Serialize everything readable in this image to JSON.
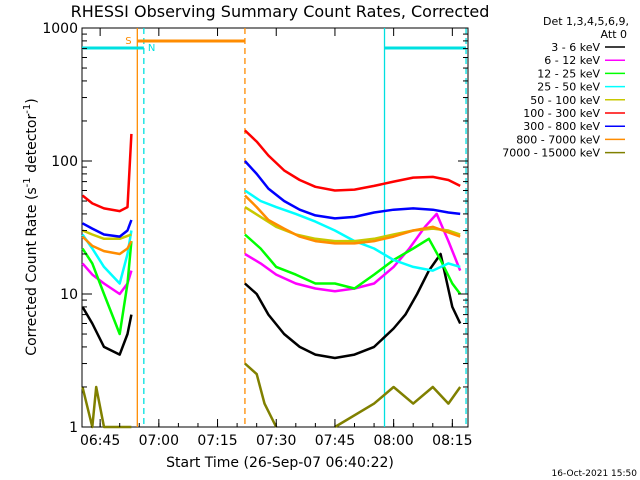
{
  "chart_data": {
    "type": "line",
    "title": "RHESSI Observing Summary Count Rates, Corrected",
    "xlabel": "Start Time (26-Sep-07 06:40:22)",
    "ylabel": "Corrected Count Rate (s⁻¹ detector⁻¹)",
    "ylabel_parts": {
      "base": "Corrected Count Rate (s",
      "exp1": "-1",
      "mid": " detector",
      "exp2": "-1",
      "end": ")"
    },
    "yscale": "log",
    "ylim": [
      1,
      1000
    ],
    "xlim": [
      "06:40:22",
      "08:19:00"
    ],
    "x_tick_labels": [
      "06:45",
      "07:00",
      "07:15",
      "07:30",
      "07:45",
      "08:00",
      "08:15"
    ],
    "y_tick_labels": [
      "1",
      "10",
      "100",
      "1000"
    ],
    "legend_header": [
      "Det 1,3,4,5,6,9,",
      "Att 0"
    ],
    "legend_position": "right",
    "footer_timestamp": "16-Oct-2021 15:50",
    "gaps": [
      "06:53:30-07:55:40 no data except 07:22-07:55"
    ],
    "series": [
      {
        "name": "3 - 6 keV",
        "color": "#000000",
        "points": [
          [
            "06:40:30",
            8
          ],
          [
            "06:43",
            6
          ],
          [
            "06:46",
            4
          ],
          [
            "06:50",
            3.5
          ],
          [
            "06:52",
            5
          ],
          [
            "06:53",
            7
          ],
          [
            "07:22",
            12
          ],
          [
            "07:25",
            10
          ],
          [
            "07:28",
            7
          ],
          [
            "07:32",
            5
          ],
          [
            "07:36",
            4
          ],
          [
            "07:40",
            3.5
          ],
          [
            "07:45",
            3.3
          ],
          [
            "07:50",
            3.5
          ],
          [
            "07:55",
            4
          ],
          [
            "08:00",
            5.5
          ],
          [
            "08:03",
            7
          ],
          [
            "08:06",
            10
          ],
          [
            "08:09",
            15
          ],
          [
            "08:12",
            20
          ],
          [
            "08:15",
            8
          ],
          [
            "08:17",
            6
          ]
        ]
      },
      {
        "name": "6 - 12 keV",
        "color": "#ff00ff",
        "points": [
          [
            "06:40:30",
            17
          ],
          [
            "06:43",
            14
          ],
          [
            "06:46",
            12
          ],
          [
            "06:50",
            10
          ],
          [
            "06:52",
            12
          ],
          [
            "06:53",
            15
          ],
          [
            "07:22",
            20
          ],
          [
            "07:26",
            17
          ],
          [
            "07:30",
            14
          ],
          [
            "07:35",
            12
          ],
          [
            "07:40",
            11
          ],
          [
            "07:45",
            10.5
          ],
          [
            "07:50",
            11
          ],
          [
            "07:55",
            12
          ],
          [
            "08:00",
            16
          ],
          [
            "08:04",
            22
          ],
          [
            "08:08",
            32
          ],
          [
            "08:11",
            40
          ],
          [
            "08:14",
            25
          ],
          [
            "08:17",
            15
          ]
        ]
      },
      {
        "name": "12 - 25 keV",
        "color": "#00ff00",
        "points": [
          [
            "06:40:30",
            22
          ],
          [
            "06:43",
            17
          ],
          [
            "06:46",
            10
          ],
          [
            "06:50",
            5
          ],
          [
            "06:52",
            12
          ],
          [
            "06:53",
            25
          ],
          [
            "07:22",
            28
          ],
          [
            "07:26",
            22
          ],
          [
            "07:30",
            16
          ],
          [
            "07:35",
            14
          ],
          [
            "07:40",
            12
          ],
          [
            "07:45",
            12
          ],
          [
            "07:50",
            11
          ],
          [
            "07:55",
            14
          ],
          [
            "08:00",
            18
          ],
          [
            "08:05",
            22
          ],
          [
            "08:09",
            26
          ],
          [
            "08:12",
            18
          ],
          [
            "08:15",
            12
          ],
          [
            "08:17",
            10
          ]
        ]
      },
      {
        "name": "25 - 50 keV",
        "color": "#00ffff",
        "points": [
          [
            "06:40:30",
            28
          ],
          [
            "06:43",
            22
          ],
          [
            "06:46",
            16
          ],
          [
            "06:50",
            12
          ],
          [
            "06:52",
            20
          ],
          [
            "06:53",
            30
          ],
          [
            "07:22",
            60
          ],
          [
            "07:26",
            50
          ],
          [
            "07:30",
            45
          ],
          [
            "07:35",
            40
          ],
          [
            "07:40",
            35
          ],
          [
            "07:45",
            30
          ],
          [
            "07:50",
            25
          ],
          [
            "07:55",
            22
          ],
          [
            "08:00",
            18
          ],
          [
            "08:05",
            16
          ],
          [
            "08:10",
            15
          ],
          [
            "08:14",
            17
          ],
          [
            "08:17",
            16
          ]
        ]
      },
      {
        "name": "50 - 100 keV",
        "color": "#c8c800",
        "points": [
          [
            "06:40:30",
            30
          ],
          [
            "06:43",
            28
          ],
          [
            "06:46",
            26
          ],
          [
            "06:50",
            26
          ],
          [
            "06:53",
            28
          ],
          [
            "07:22",
            45
          ],
          [
            "07:26",
            38
          ],
          [
            "07:30",
            32
          ],
          [
            "07:35",
            28
          ],
          [
            "07:40",
            26
          ],
          [
            "07:45",
            25
          ],
          [
            "07:50",
            25
          ],
          [
            "07:55",
            26
          ],
          [
            "08:00",
            28
          ],
          [
            "08:05",
            30
          ],
          [
            "08:10",
            31
          ],
          [
            "08:14",
            30
          ],
          [
            "08:17",
            28
          ]
        ]
      },
      {
        "name": "100 - 300 keV",
        "color": "#ff0000",
        "points": [
          [
            "06:40:30",
            55
          ],
          [
            "06:43",
            48
          ],
          [
            "06:46",
            44
          ],
          [
            "06:50",
            42
          ],
          [
            "06:52",
            45
          ],
          [
            "06:53",
            160
          ],
          [
            "07:22",
            170
          ],
          [
            "07:25",
            140
          ],
          [
            "07:28",
            110
          ],
          [
            "07:32",
            85
          ],
          [
            "07:36",
            72
          ],
          [
            "07:40",
            64
          ],
          [
            "07:45",
            60
          ],
          [
            "07:50",
            61
          ],
          [
            "07:55",
            65
          ],
          [
            "08:00",
            70
          ],
          [
            "08:05",
            75
          ],
          [
            "08:10",
            76
          ],
          [
            "08:14",
            72
          ],
          [
            "08:17",
            65
          ]
        ]
      },
      {
        "name": "300 - 800 keV",
        "color": "#0000ff",
        "points": [
          [
            "06:40:30",
            34
          ],
          [
            "06:43",
            31
          ],
          [
            "06:46",
            28
          ],
          [
            "06:50",
            27
          ],
          [
            "06:52",
            30
          ],
          [
            "06:53",
            36
          ],
          [
            "07:22",
            100
          ],
          [
            "07:25",
            80
          ],
          [
            "07:28",
            62
          ],
          [
            "07:32",
            50
          ],
          [
            "07:36",
            43
          ],
          [
            "07:40",
            39
          ],
          [
            "07:45",
            37
          ],
          [
            "07:50",
            38
          ],
          [
            "07:55",
            41
          ],
          [
            "08:00",
            43
          ],
          [
            "08:05",
            44
          ],
          [
            "08:10",
            43
          ],
          [
            "08:14",
            41
          ],
          [
            "08:17",
            40
          ]
        ]
      },
      {
        "name": "800 - 7000 keV",
        "color": "#ff8c00",
        "points": [
          [
            "06:40:30",
            27
          ],
          [
            "06:43",
            23
          ],
          [
            "06:46",
            21
          ],
          [
            "06:50",
            20
          ],
          [
            "06:52",
            22
          ],
          [
            "06:53",
            25
          ],
          [
            "07:22",
            55
          ],
          [
            "07:25",
            45
          ],
          [
            "07:28",
            36
          ],
          [
            "07:32",
            31
          ],
          [
            "07:36",
            27
          ],
          [
            "07:40",
            25
          ],
          [
            "07:45",
            24
          ],
          [
            "07:50",
            24
          ],
          [
            "07:55",
            25
          ],
          [
            "08:00",
            27
          ],
          [
            "08:05",
            30
          ],
          [
            "08:10",
            32
          ],
          [
            "08:14",
            29
          ],
          [
            "08:17",
            27
          ]
        ]
      },
      {
        "name": "7000 - 15000 keV",
        "color": "#808000",
        "points": [
          [
            "06:40:30",
            2
          ],
          [
            "06:43",
            1
          ],
          [
            "06:44",
            2
          ],
          [
            "06:46",
            1
          ],
          [
            "06:50",
            1
          ],
          [
            "06:53",
            1
          ],
          [
            "07:22",
            3
          ],
          [
            "07:25",
            2.5
          ],
          [
            "07:27",
            1.5
          ],
          [
            "07:30",
            1
          ],
          [
            "07:45",
            1
          ],
          [
            "07:55",
            1.5
          ],
          [
            "08:00",
            2
          ],
          [
            "08:05",
            1.5
          ],
          [
            "08:10",
            2
          ],
          [
            "08:14",
            1.5
          ],
          [
            "08:17",
            2
          ]
        ]
      }
    ],
    "markers": {
      "night_bars": [
        {
          "label": "",
          "color": "#00e0e0",
          "start": "06:40:22",
          "end": "06:56:10"
        },
        {
          "label": "",
          "color": "#00e0e0",
          "start": "07:57:40",
          "end": "08:18:30"
        }
      ],
      "saa_bar": {
        "label": "S",
        "color": "#ff8c00",
        "start": "06:54:30",
        "end": "07:22:00"
      },
      "n_label": "N",
      "vertical_lines": [
        {
          "time": "06:54:30",
          "color": "#ff8c00",
          "style": "solid"
        },
        {
          "time": "06:56:10",
          "color": "#00e0e0",
          "style": "dashed"
        },
        {
          "time": "07:22:00",
          "color": "#ff8c00",
          "style": "dashed"
        },
        {
          "time": "07:57:40",
          "color": "#00e0e0",
          "style": "solid"
        },
        {
          "time": "08:18:30",
          "color": "#00e0e0",
          "style": "dashed"
        }
      ]
    }
  }
}
